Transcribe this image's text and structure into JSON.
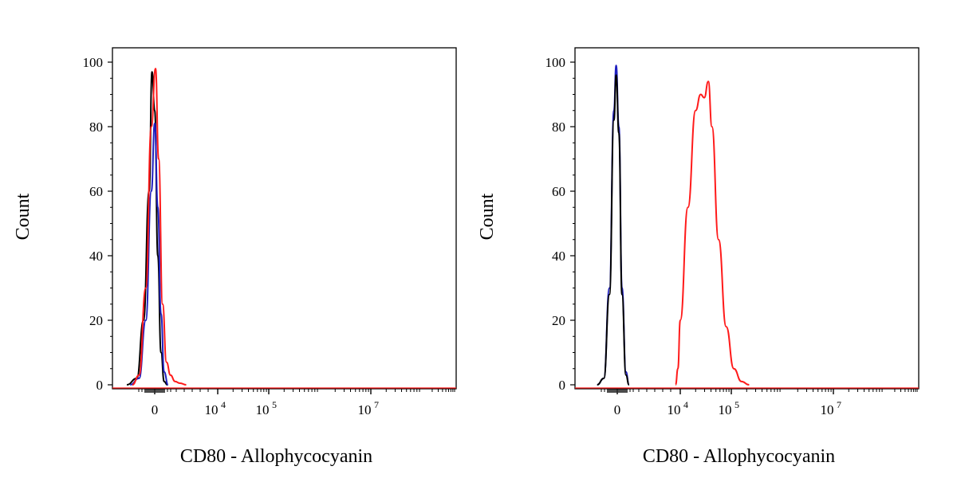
{
  "chart_data": [
    {
      "type": "histogram",
      "panel": "left",
      "xlabel": "CD80 - Allophycocyanin",
      "ylabel": "Count",
      "ylim": [
        0,
        100
      ],
      "x_scale": "biexponential (linear near 0, log above 10^4)",
      "y_ticks": [
        "0",
        "20",
        "40",
        "60",
        "80",
        "100"
      ],
      "x_ticks": [
        {
          "base": "0",
          "exp": ""
        },
        {
          "base": "10",
          "exp": "4"
        },
        {
          "base": "10",
          "exp": "5"
        },
        {
          "base": "10",
          "exp": "7"
        }
      ],
      "series": [
        {
          "color": "#000000",
          "peak_count": 97,
          "points": [
            [
              -1.25,
              0
            ],
            [
              -0.8,
              2
            ],
            [
              -0.5,
              20
            ],
            [
              -0.25,
              60
            ],
            [
              -0.12,
              97
            ],
            [
              0.0,
              85
            ],
            [
              0.2,
              40
            ],
            [
              0.4,
              10
            ],
            [
              0.6,
              1
            ],
            [
              0.8,
              0
            ]
          ]
        },
        {
          "color": "#1f1fbf",
          "peak_count": 81,
          "points": [
            [
              -1.1,
              0
            ],
            [
              -0.7,
              2
            ],
            [
              -0.4,
              20
            ],
            [
              -0.15,
              60
            ],
            [
              0.0,
              81
            ],
            [
              0.2,
              55
            ],
            [
              0.4,
              22
            ],
            [
              0.6,
              4
            ],
            [
              0.85,
              0
            ]
          ]
        },
        {
          "color": "#ff1a1a",
          "peak_count": 98,
          "points": [
            [
              -1.0,
              0
            ],
            [
              -0.7,
              3
            ],
            [
              -0.4,
              30
            ],
            [
              -0.15,
              80
            ],
            [
              0.05,
              98
            ],
            [
              0.25,
              70
            ],
            [
              0.5,
              25
            ],
            [
              0.75,
              7
            ],
            [
              1.0,
              3
            ],
            [
              1.3,
              1
            ],
            [
              1.6,
              0.5
            ],
            [
              2.0,
              0
            ]
          ]
        }
      ]
    },
    {
      "type": "histogram",
      "panel": "right",
      "xlabel": "CD80 - Allophycocyanin",
      "ylabel": "Count",
      "ylim": [
        0,
        100
      ],
      "x_scale": "biexponential (linear near 0, log above 10^4)",
      "y_ticks": [
        "0",
        "20",
        "40",
        "60",
        "80",
        "100"
      ],
      "x_ticks": [
        {
          "base": "0",
          "exp": ""
        },
        {
          "base": "10",
          "exp": "4"
        },
        {
          "base": "10",
          "exp": "5"
        },
        {
          "base": "10",
          "exp": "7"
        }
      ],
      "series": [
        {
          "color": "#1f1fbf",
          "peak_count": 99,
          "points": [
            [
              -0.9,
              0
            ],
            [
              -0.6,
              2
            ],
            [
              -0.35,
              30
            ],
            [
              -0.15,
              85
            ],
            [
              -0.05,
              99
            ],
            [
              0.1,
              80
            ],
            [
              0.3,
              30
            ],
            [
              0.55,
              4
            ],
            [
              0.75,
              0
            ]
          ]
        },
        {
          "color": "#000000",
          "peak_count": 96,
          "points": [
            [
              -0.9,
              0
            ],
            [
              -0.6,
              2
            ],
            [
              -0.35,
              28
            ],
            [
              -0.15,
              82
            ],
            [
              -0.05,
              96
            ],
            [
              0.1,
              78
            ],
            [
              0.3,
              28
            ],
            [
              0.55,
              3
            ],
            [
              0.75,
              0
            ]
          ]
        },
        {
          "color": "#ff1a1a",
          "peak_count": 94,
          "points": [
            [
              3.7,
              0
            ],
            [
              3.85,
              5
            ],
            [
              4.0,
              20
            ],
            [
              4.15,
              55
            ],
            [
              4.3,
              85
            ],
            [
              4.4,
              90
            ],
            [
              4.47,
              89
            ],
            [
              4.55,
              94
            ],
            [
              4.62,
              80
            ],
            [
              4.75,
              45
            ],
            [
              4.9,
              18
            ],
            [
              5.05,
              5
            ],
            [
              5.2,
              1
            ],
            [
              5.35,
              0
            ]
          ]
        }
      ]
    }
  ]
}
